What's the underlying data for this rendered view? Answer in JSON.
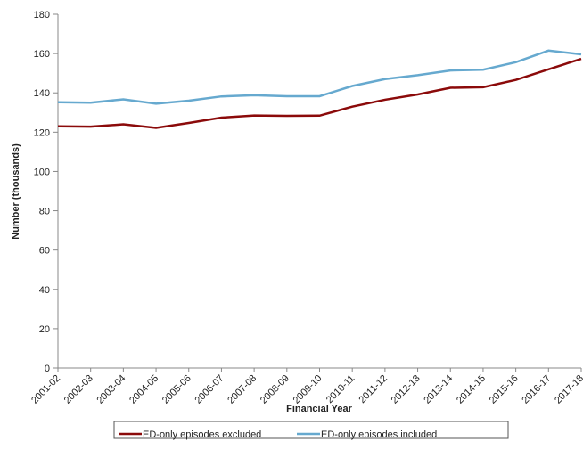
{
  "chart_data": {
    "type": "line",
    "x_label": "Financial Year",
    "y_label": "Number (thousands)",
    "categories": [
      "2001-02",
      "2002-03",
      "2003-04",
      "2004-05",
      "2005-06",
      "2006-07",
      "2007-08",
      "2008-09",
      "2009-10",
      "2010-11",
      "2011-12",
      "2012-13",
      "2013-14",
      "2014-15",
      "2015-16",
      "2016-17",
      "2017-18"
    ],
    "series": [
      {
        "name": "ED-only episodes excluded",
        "color": "#8b0a0a",
        "values": [
          123,
          122.8,
          124,
          122.2,
          124.7,
          127.4,
          128.5,
          128.3,
          128.4,
          133,
          136.5,
          139.2,
          142.6,
          142.9,
          146.6,
          152,
          157.3
        ]
      },
      {
        "name": "ED-only episodes included",
        "color": "#66a9cf",
        "values": [
          135.2,
          135,
          136.7,
          134.5,
          136,
          138.2,
          138.8,
          138.3,
          138.3,
          143.5,
          147,
          149,
          151.4,
          151.8,
          155.6,
          161.5,
          159.6
        ]
      }
    ],
    "ylim": [
      0,
      180
    ],
    "yticks": [
      0,
      20,
      40,
      60,
      80,
      100,
      120,
      140,
      160,
      180
    ],
    "legend": "bottom"
  }
}
